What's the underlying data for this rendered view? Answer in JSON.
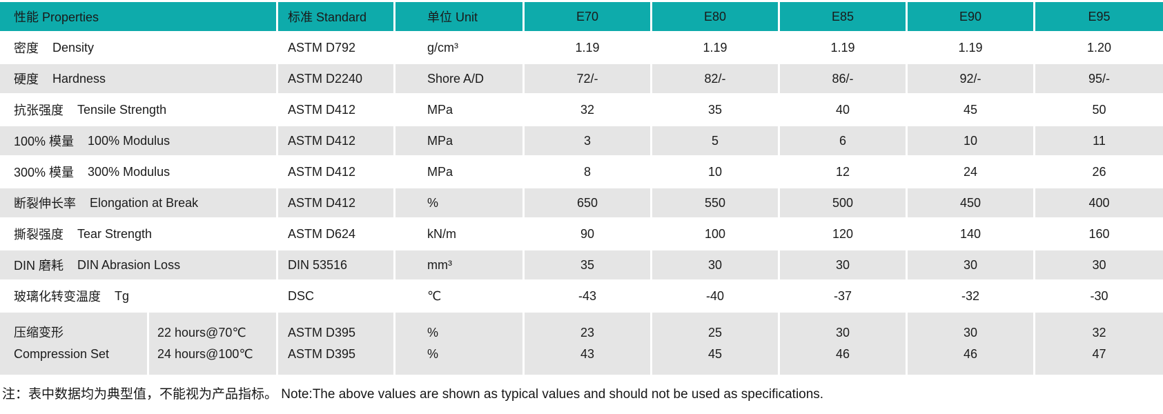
{
  "table": {
    "header": {
      "properties_label": "性能 Properties",
      "standard_label": "标准 Standard",
      "unit_label": "单位 Unit",
      "grades": [
        "E70",
        "E80",
        "E85",
        "E90",
        "E95"
      ]
    },
    "rows": [
      {
        "name_cn": "密度",
        "name_en": "Density",
        "standard": "ASTM D792",
        "unit": "g/cm³",
        "values": [
          "1.19",
          "1.19",
          "1.19",
          "1.19",
          "1.20"
        ],
        "shaded": false
      },
      {
        "name_cn": "硬度",
        "name_en": "Hardness",
        "standard": "ASTM D2240",
        "unit": "Shore A/D",
        "values": [
          "72/-",
          "82/-",
          "86/-",
          "92/-",
          "95/-"
        ],
        "shaded": true
      },
      {
        "name_cn": "抗张强度",
        "name_en": "Tensile Strength",
        "standard": "ASTM D412",
        "unit": "MPa",
        "values": [
          "32",
          "35",
          "40",
          "45",
          "50"
        ],
        "shaded": false
      },
      {
        "name_cn": "100% 模量",
        "name_en": "100% Modulus",
        "standard": "ASTM D412",
        "unit": "MPa",
        "values": [
          "3",
          "5",
          "6",
          "10",
          "11"
        ],
        "shaded": true
      },
      {
        "name_cn": "300% 模量",
        "name_en": "300% Modulus",
        "standard": "ASTM D412",
        "unit": "MPa",
        "values": [
          "8",
          "10",
          "12",
          "24",
          "26"
        ],
        "shaded": false
      },
      {
        "name_cn": "断裂伸长率",
        "name_en": "Elongation at Break",
        "standard": "ASTM D412",
        "unit": "%",
        "values": [
          "650",
          "550",
          "500",
          "450",
          "400"
        ],
        "shaded": true
      },
      {
        "name_cn": "撕裂强度",
        "name_en": "Tear Strength",
        "standard": "ASTM D624",
        "unit": "kN/m",
        "values": [
          "90",
          "100",
          "120",
          "140",
          "160"
        ],
        "shaded": false
      },
      {
        "name_cn": "DIN 磨耗",
        "name_en": "DIN Abrasion Loss",
        "standard": "DIN 53516",
        "unit": "mm³",
        "values": [
          "35",
          "30",
          "30",
          "30",
          "30"
        ],
        "shaded": true
      },
      {
        "name_cn": "玻璃化转变温度",
        "name_en": "Tg",
        "standard": "DSC",
        "unit": "℃",
        "values": [
          "-43",
          "-40",
          "-37",
          "-32",
          "-30"
        ],
        "shaded": false
      }
    ],
    "compression": {
      "name_cn": "压缩变形",
      "name_en": "Compression Set",
      "conditions": [
        "22 hours@70℃",
        "24 hours@100℃"
      ],
      "standards": [
        "ASTM D395",
        "ASTM D395"
      ],
      "units": [
        "%",
        "%"
      ],
      "values": [
        [
          "23",
          "43"
        ],
        [
          "25",
          "45"
        ],
        [
          "30",
          "46"
        ],
        [
          "30",
          "46"
        ],
        [
          "32",
          "47"
        ]
      ]
    },
    "note": "注：表中数据均为典型值，不能视为产品指标。 Note:The above values are shown as typical values and should not be used as specifications."
  },
  "colors": {
    "header_bg": "#0eabab",
    "shaded_row_bg": "#e5e5e5",
    "text": "#1b1b1b"
  }
}
